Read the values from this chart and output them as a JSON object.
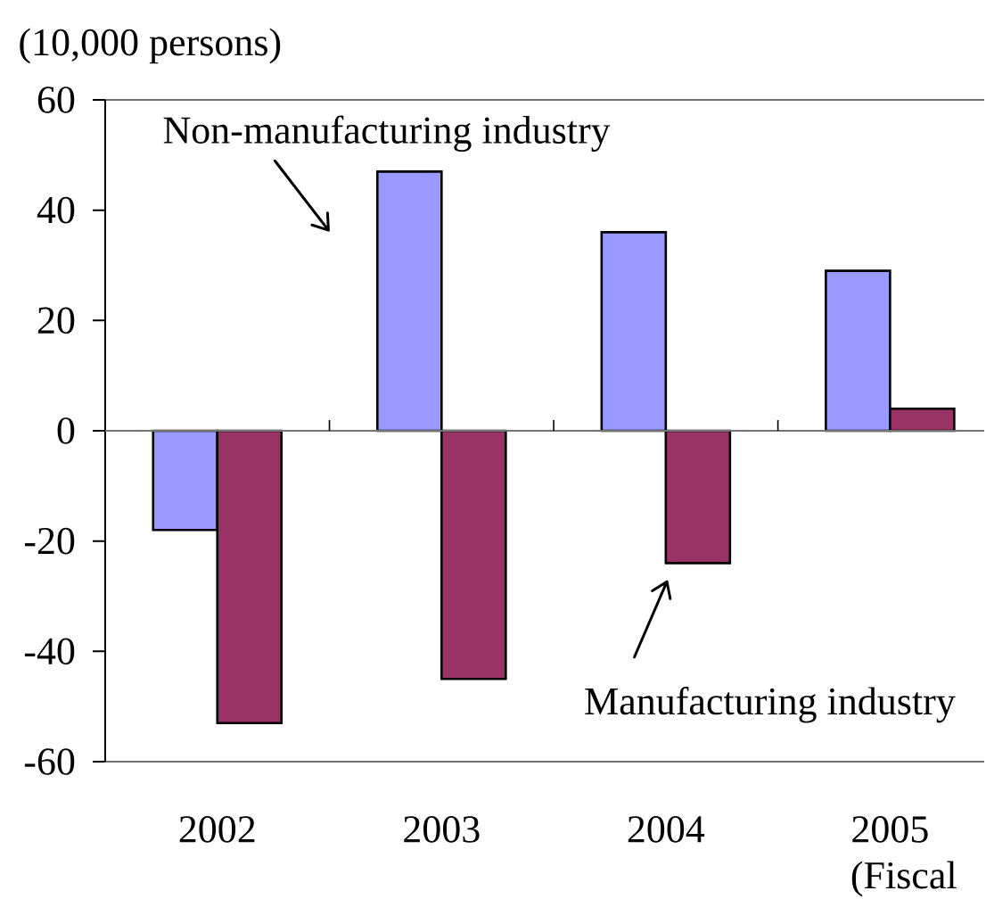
{
  "chart_data": {
    "type": "bar",
    "ylabel": "(10,000 persons)",
    "xlabel": "(Fiscal",
    "categories": [
      "2002",
      "2003",
      "2004",
      "2005"
    ],
    "series": [
      {
        "name": "Non-manufacturing industry",
        "color": "#9999ff",
        "values": [
          -18,
          47,
          36,
          29
        ]
      },
      {
        "name": "Manufacturing industry",
        "color": "#993366",
        "values": [
          -53,
          -45,
          -24,
          4
        ]
      }
    ],
    "ylim": [
      -60,
      60
    ],
    "yticks": [
      -60,
      -40,
      -20,
      0,
      20,
      40,
      60
    ]
  }
}
